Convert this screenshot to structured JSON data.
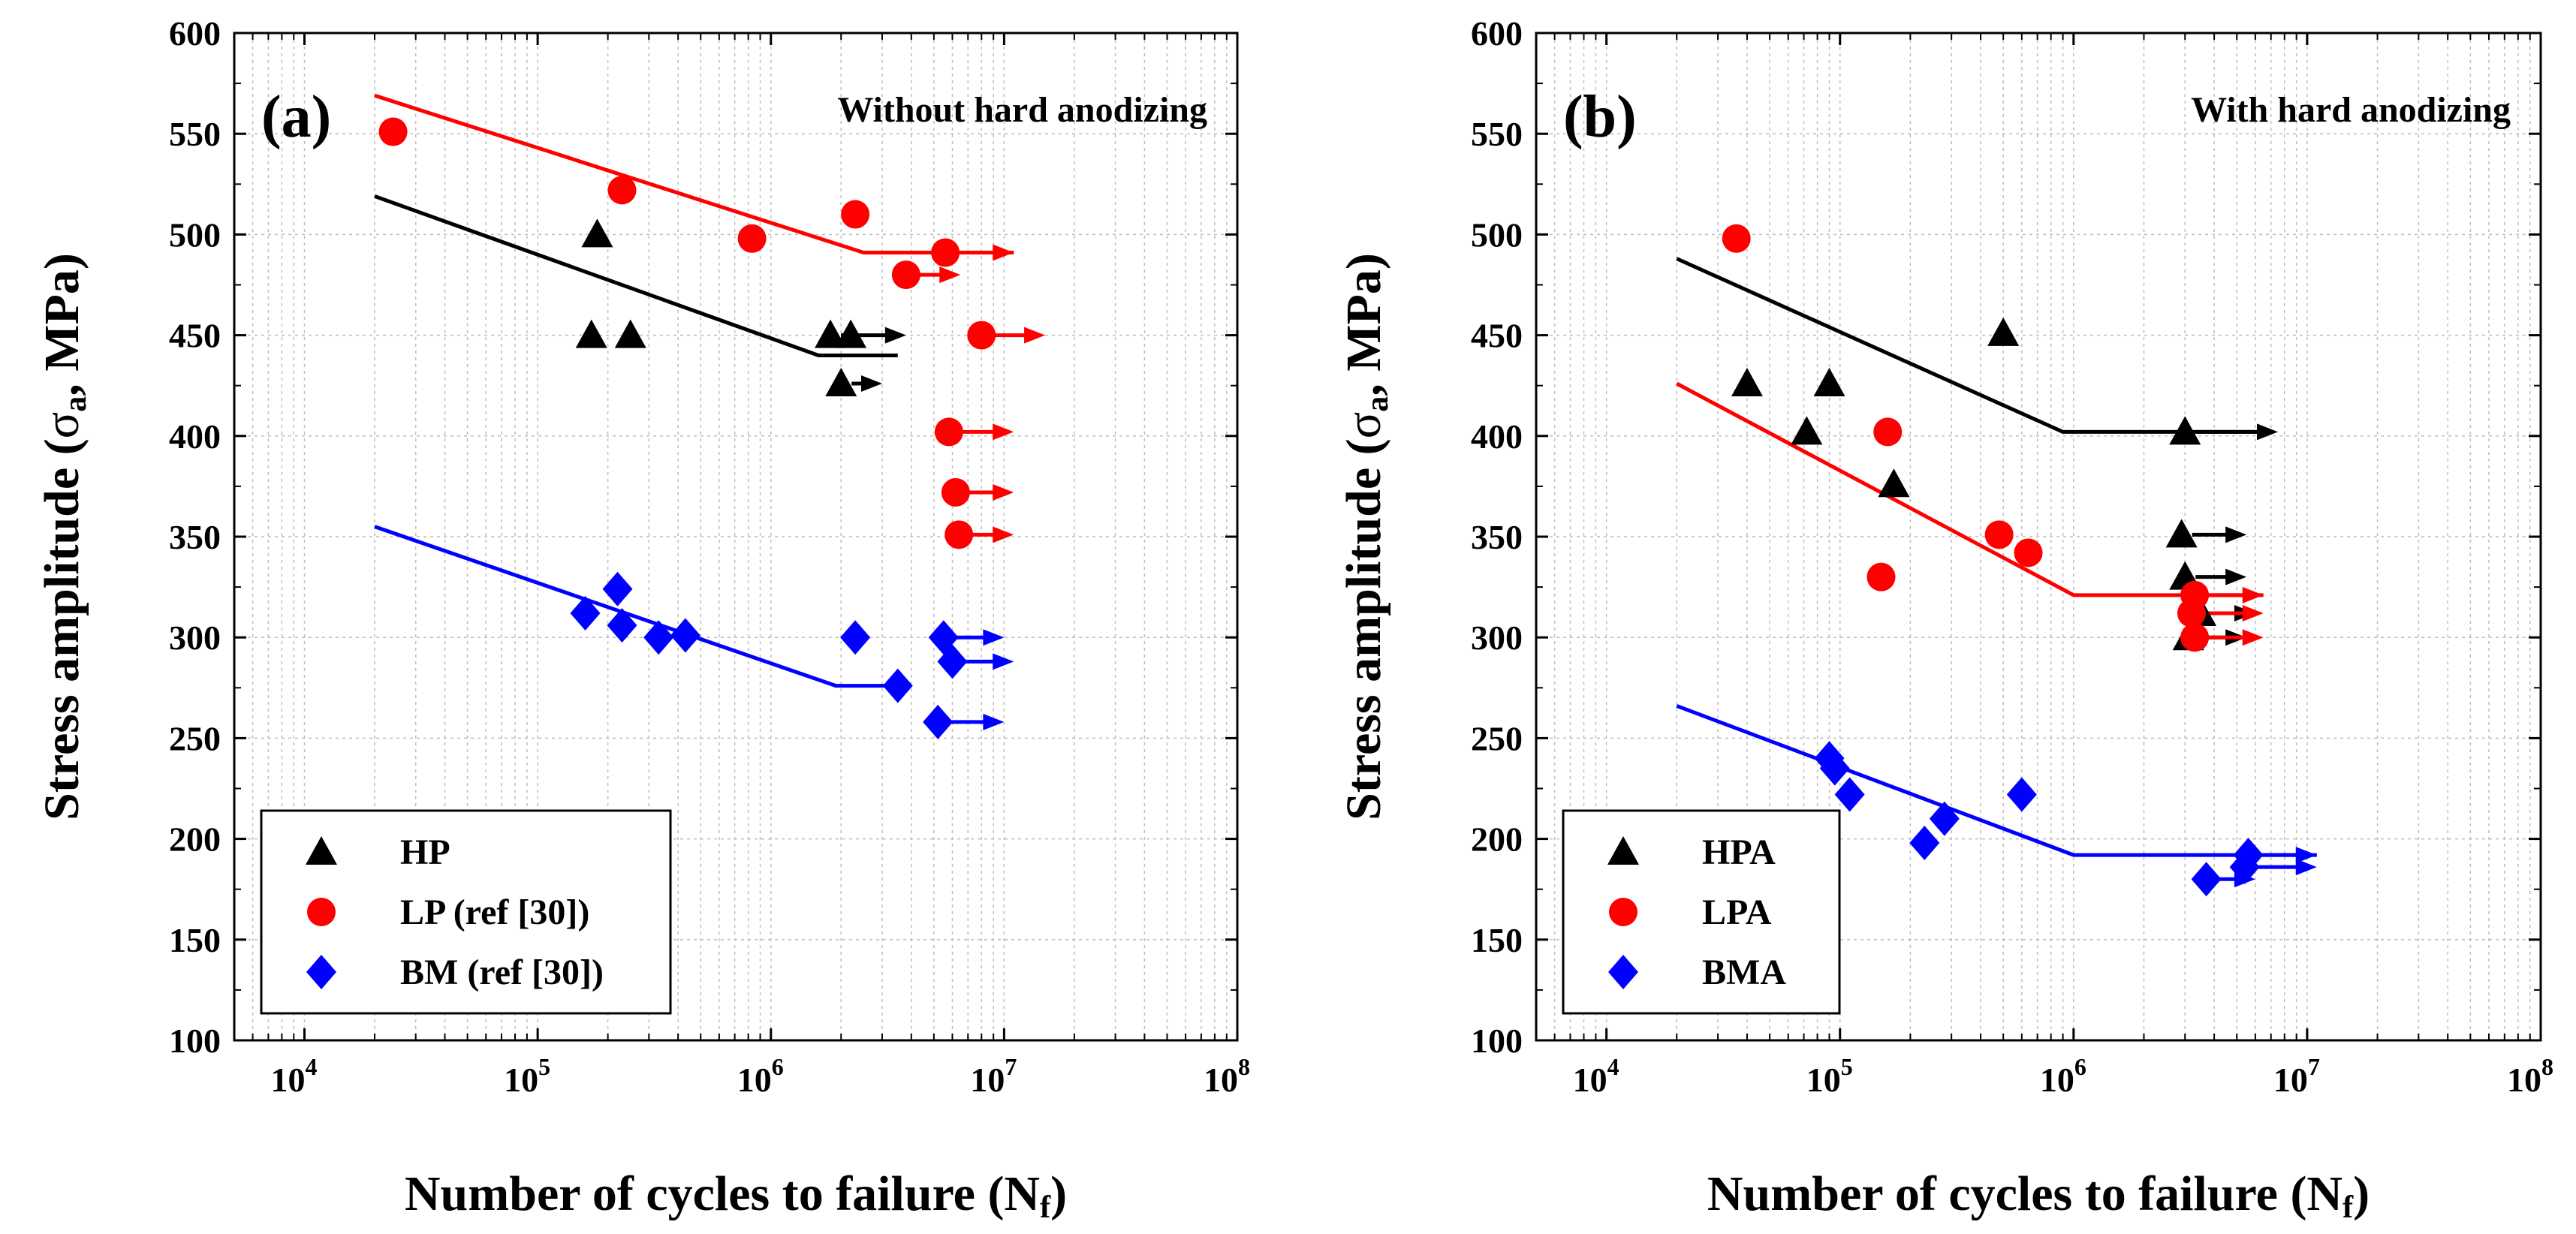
{
  "chart_data": [
    {
      "type": "scatter",
      "panel_label": "(a)",
      "annotation": "Without hard anodizing",
      "xlabel": "Number of cycles to failure (N",
      "xlabel_sub": "f",
      "xlabel_end": ")",
      "ylabel": "Stress amplitude (",
      "ylabel_sym": "σ",
      "ylabel_sub": "a",
      "ylabel_end": ", MPa)",
      "xscale": "log",
      "xlim": [
        5000,
        100000000
      ],
      "ylim": [
        100,
        600
      ],
      "yticks": [
        100,
        150,
        200,
        250,
        300,
        350,
        400,
        450,
        500,
        550,
        600
      ],
      "xticks": [
        {
          "value": 10000,
          "base": "10",
          "exp": "4"
        },
        {
          "value": 100000,
          "base": "10",
          "exp": "5"
        },
        {
          "value": 1000000,
          "base": "10",
          "exp": "6"
        },
        {
          "value": 10000000,
          "base": "10",
          "exp": "7"
        },
        {
          "value": 100000000,
          "base": "10",
          "exp": "8"
        }
      ],
      "grid": true,
      "legend_position": "bottom-left",
      "series": [
        {
          "name": "HP",
          "color": "#000000",
          "marker": "triangle",
          "points": [
            [
              180000,
              500
            ],
            [
              170000,
              450
            ],
            [
              250000,
              450
            ],
            [
              1800000,
              450
            ],
            [
              2200000,
              450
            ],
            [
              2000000,
              426
            ]
          ],
          "runouts": [
            [
              1800000,
              450,
              3800000
            ],
            [
              2000000,
              426,
              3000000
            ]
          ],
          "fit": [
            [
              20000,
              519
            ],
            [
              1600000,
              440
            ],
            [
              3500000,
              440
            ]
          ]
        },
        {
          "name": "LP  (ref [30])",
          "color": "#ff0000",
          "marker": "circle",
          "points": [
            [
              24000,
              551
            ],
            [
              230000,
              522
            ],
            [
              830000,
              498
            ],
            [
              2300000,
              510
            ],
            [
              5600000,
              491
            ],
            [
              3800000,
              480
            ],
            [
              8000000,
              450
            ],
            [
              5800000,
              402
            ],
            [
              6200000,
              372
            ],
            [
              6400000,
              351
            ]
          ],
          "runouts": [
            [
              5600000,
              491,
              11000000
            ],
            [
              3800000,
              480,
              6500000
            ],
            [
              8000000,
              450,
              15000000
            ],
            [
              5800000,
              402,
              11000000
            ],
            [
              6200000,
              372,
              11000000
            ],
            [
              6400000,
              351,
              11000000
            ]
          ],
          "fit": [
            [
              20000,
              569
            ],
            [
              2500000,
              491
            ],
            [
              11000000,
              491
            ]
          ]
        },
        {
          "name": "BM (ref [30])",
          "color": "#0000ff",
          "marker": "diamond",
          "points": [
            [
              160000,
              312
            ],
            [
              220000,
              324
            ],
            [
              230000,
              306
            ],
            [
              330000,
              300
            ],
            [
              430000,
              301
            ],
            [
              2300000,
              300
            ],
            [
              5500000,
              300
            ],
            [
              3500000,
              276
            ],
            [
              6000000,
              288
            ],
            [
              5200000,
              258
            ]
          ],
          "runouts": [
            [
              5500000,
              300,
              10000000
            ],
            [
              6000000,
              288,
              11000000
            ],
            [
              5200000,
              258,
              10000000
            ]
          ],
          "fit": [
            [
              20000,
              355
            ],
            [
              1900000,
              276
            ],
            [
              3800000,
              276
            ]
          ]
        }
      ]
    },
    {
      "type": "scatter",
      "panel_label": "(b)",
      "annotation": "With hard anodizing",
      "xlabel": "Number of cycles to failure (N",
      "xlabel_sub": "f",
      "xlabel_end": ")",
      "ylabel": "Stress amplitude (",
      "ylabel_sym": "σ",
      "ylabel_sub": "a",
      "ylabel_end": ", MPa)",
      "xscale": "log",
      "xlim": [
        5000,
        100000000
      ],
      "ylim": [
        100,
        600
      ],
      "yticks": [
        100,
        150,
        200,
        250,
        300,
        350,
        400,
        450,
        500,
        550,
        600
      ],
      "xticks": [
        {
          "value": 10000,
          "base": "10",
          "exp": "4"
        },
        {
          "value": 100000,
          "base": "10",
          "exp": "5"
        },
        {
          "value": 1000000,
          "base": "10",
          "exp": "6"
        },
        {
          "value": 10000000,
          "base": "10",
          "exp": "7"
        },
        {
          "value": 100000000,
          "base": "10",
          "exp": "8"
        }
      ],
      "grid": true,
      "legend_position": "bottom-left",
      "series": [
        {
          "name": "HPA",
          "color": "#000000",
          "marker": "triangle",
          "points": [
            [
              40000,
              426
            ],
            [
              90000,
              426
            ],
            [
              72000,
              402
            ],
            [
              170000,
              376
            ],
            [
              500000,
              451
            ],
            [
              3000000,
              402
            ],
            [
              2900000,
              351
            ],
            [
              3000000,
              330
            ],
            [
              3500000,
              312
            ],
            [
              3100000,
              300
            ]
          ],
          "runouts": [
            [
              3000000,
              402,
              7500000
            ],
            [
              2900000,
              351,
              5500000
            ],
            [
              3000000,
              330,
              5500000
            ],
            [
              3500000,
              312,
              6000000
            ],
            [
              3100000,
              300,
              5500000
            ]
          ],
          "fit": [
            [
              20000,
              488
            ],
            [
              900000,
              402
            ],
            [
              7000000,
              402
            ]
          ]
        },
        {
          "name": "LPA",
          "color": "#ff0000",
          "marker": "circle",
          "points": [
            [
              36000,
              498
            ],
            [
              160000,
              402
            ],
            [
              150000,
              330
            ],
            [
              480000,
              351
            ],
            [
              640000,
              342
            ],
            [
              3300000,
              321
            ],
            [
              3200000,
              312
            ],
            [
              3300000,
              300
            ]
          ],
          "runouts": [
            [
              3300000,
              321,
              6500000
            ],
            [
              3200000,
              312,
              6500000
            ],
            [
              3300000,
              300,
              6500000
            ]
          ],
          "fit": [
            [
              20000,
              426
            ],
            [
              1000000,
              321
            ],
            [
              6500000,
              321
            ]
          ]
        },
        {
          "name": "BMA",
          "color": "#0000ff",
          "marker": "diamond",
          "points": [
            [
              90000,
              240
            ],
            [
              95000,
              235
            ],
            [
              110000,
              222
            ],
            [
              230000,
              198
            ],
            [
              280000,
              210
            ],
            [
              600000,
              222
            ],
            [
              3700000,
              180
            ],
            [
              5600000,
              192
            ],
            [
              5400000,
              186
            ]
          ],
          "runouts": [
            [
              3700000,
              180,
              6000000
            ],
            [
              5600000,
              192,
              11000000
            ],
            [
              5400000,
              186,
              11000000
            ]
          ],
          "fit": [
            [
              20000,
              266
            ],
            [
              1000000,
              192
            ],
            [
              11000000,
              192
            ]
          ]
        }
      ]
    }
  ]
}
